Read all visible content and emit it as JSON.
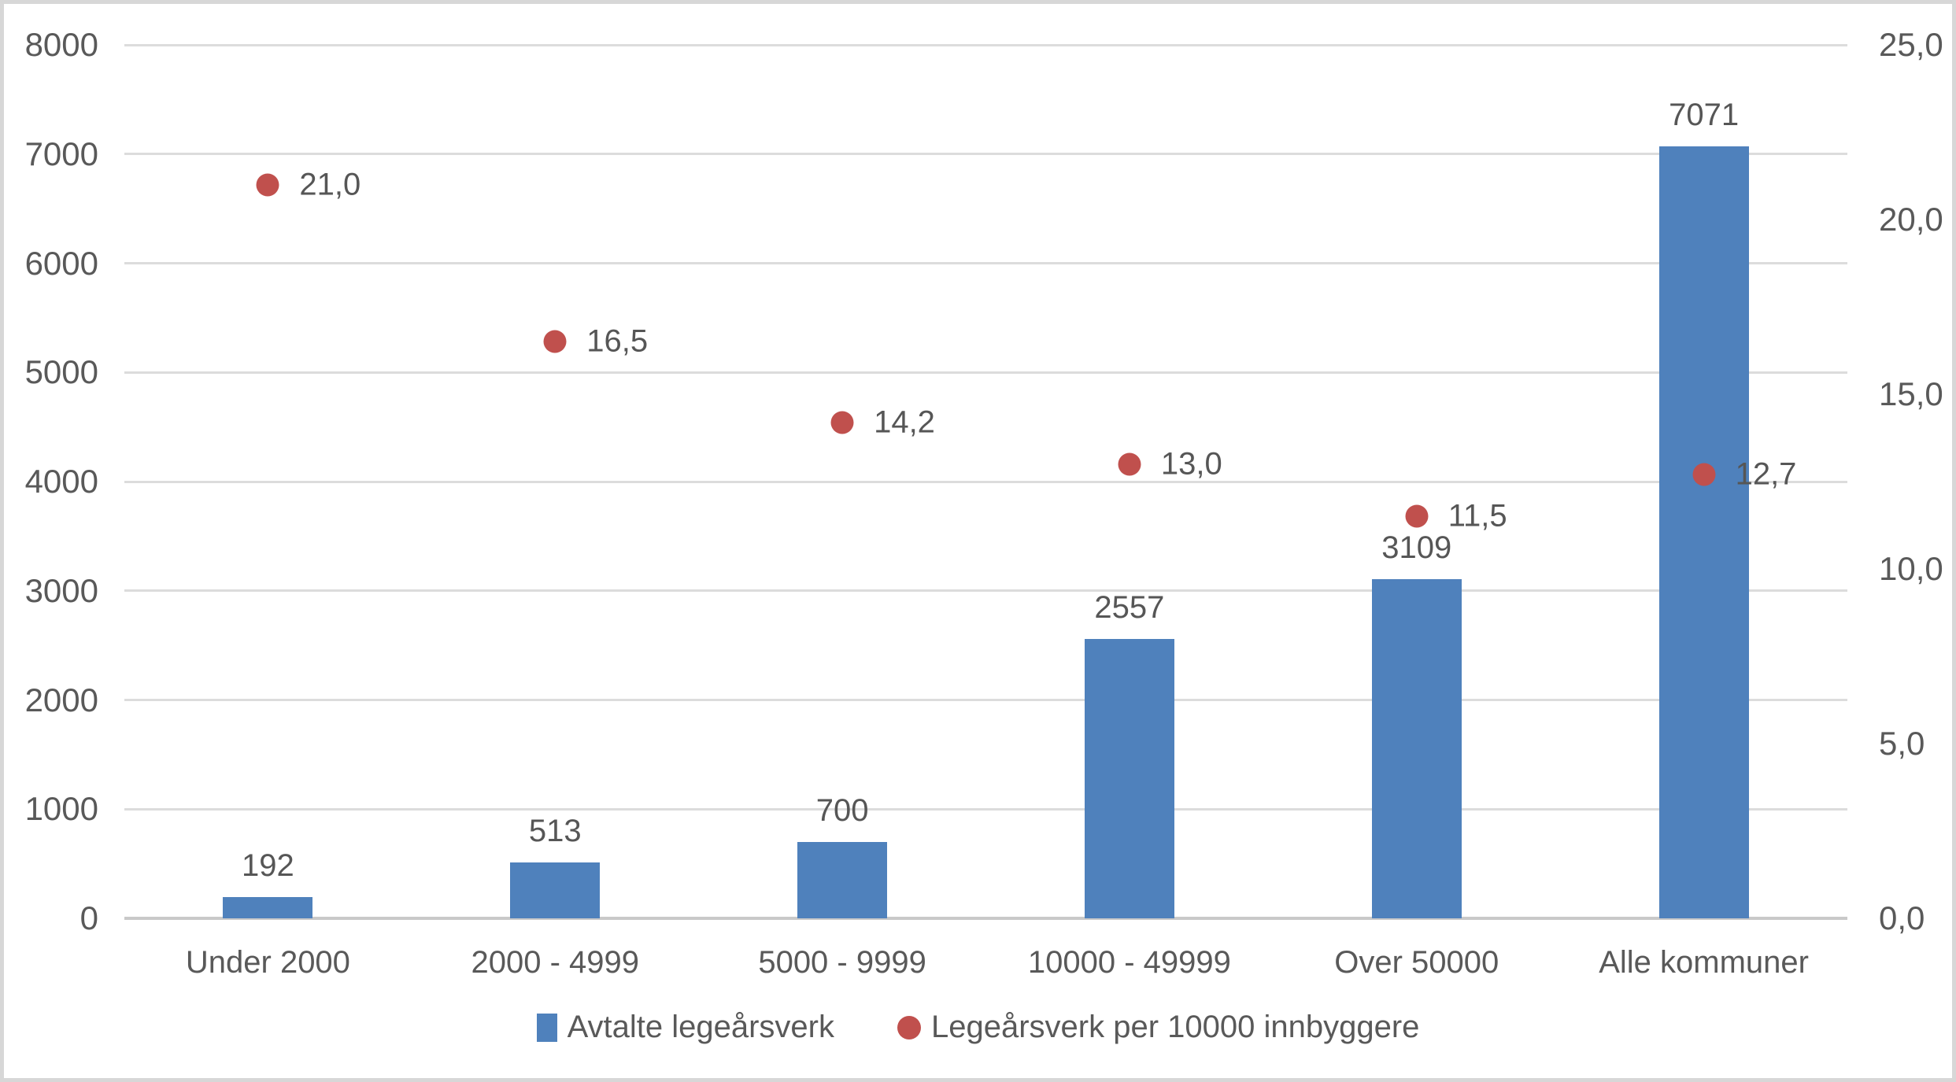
{
  "chart_data": {
    "type": "combo",
    "categories": [
      "Under 2000",
      "2000 - 4999",
      "5000 - 9999",
      "10000 - 49999",
      "Over 50000",
      "Alle kommuner"
    ],
    "series": [
      {
        "name": "Avtalte legeårsverk",
        "type": "bar",
        "axis": "left",
        "values": [
          192,
          513,
          700,
          2557,
          3109,
          7071
        ],
        "labels": [
          "192",
          "513",
          "700",
          "2557",
          "3109",
          "7071"
        ],
        "color": "#4F81BC"
      },
      {
        "name": "Legeårsverk per 10000 innbyggere",
        "type": "scatter",
        "axis": "right",
        "values": [
          21.0,
          16.5,
          14.2,
          13.0,
          11.5,
          12.7
        ],
        "labels": [
          "21,0",
          "16,5",
          "14,2",
          "13,0",
          "11,5",
          "12,7"
        ],
        "color": "#C0504D"
      }
    ],
    "left_axis": {
      "min": 0,
      "max": 8000,
      "step": 1000,
      "ticks": [
        "0",
        "1000",
        "2000",
        "3000",
        "4000",
        "5000",
        "6000",
        "7000",
        "8000"
      ]
    },
    "right_axis": {
      "min": 0,
      "max": 25,
      "step": 5,
      "ticks": [
        "0,0",
        "5,0",
        "10,0",
        "15,0",
        "20,0",
        "25,0"
      ]
    },
    "grid": true,
    "legend_position": "bottom",
    "title": ""
  },
  "colors": {
    "bar": "#4F81BC",
    "point": "#C0504D",
    "text": "#595959",
    "gridline": "#DCDCDC",
    "axis_line": "#C9C9C9",
    "border": "#D7D7D7",
    "background": "#FFFFFF"
  }
}
